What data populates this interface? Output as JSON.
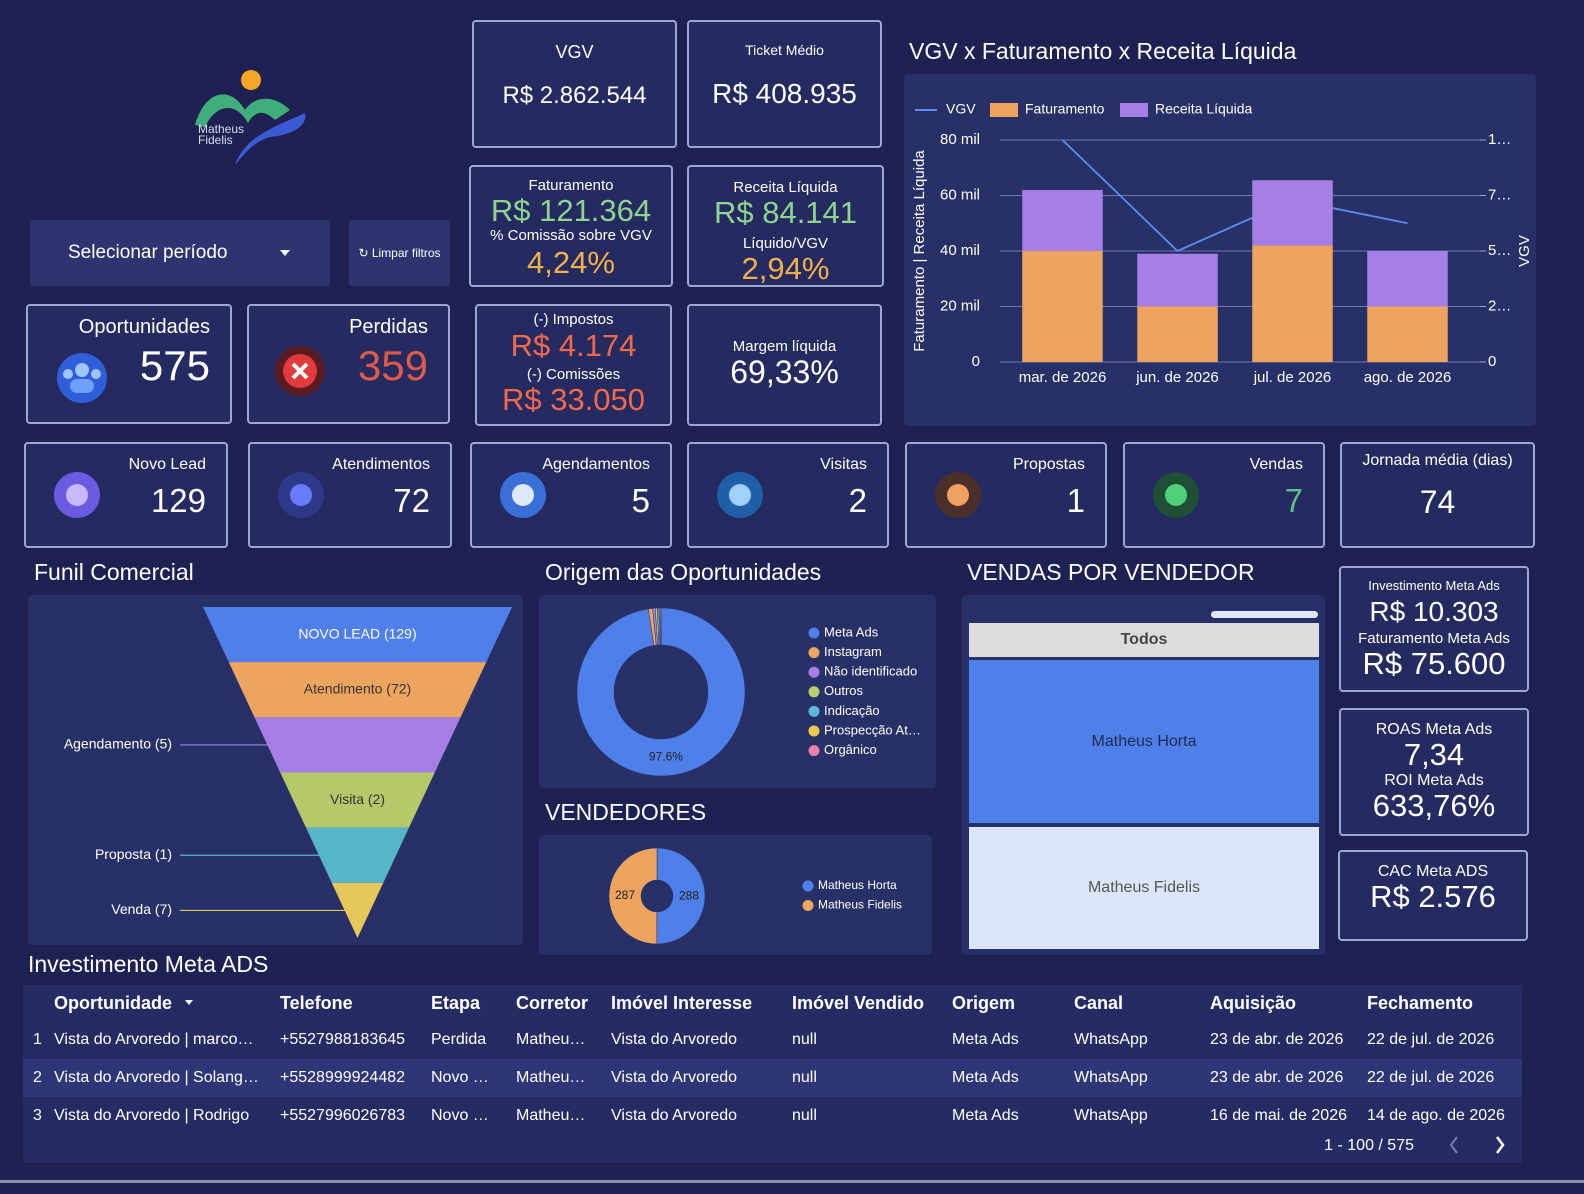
{
  "logo": {
    "line1": "Matheus",
    "line2": "Fidelis"
  },
  "filters": {
    "period": "Selecionar período",
    "clear": "↻ Limpar filtros"
  },
  "kpis": {
    "vgv": {
      "label": "VGV",
      "value": "R$ 2.862.544"
    },
    "ticket": {
      "label": "Ticket Médio",
      "value": "R$ 408.935"
    },
    "faturamento": {
      "label": "Faturamento",
      "value": "R$ 121.364",
      "sub_label": "% Comissão sobre VGV",
      "sub_value": "4,24%"
    },
    "receita": {
      "label": "Receita Líquida",
      "value": "R$ 84.141",
      "sub_label": "Líquido/VGV",
      "sub_value": "2,94%"
    },
    "oportunidades": {
      "label": "Oportunidades",
      "value": 575
    },
    "perdidas": {
      "label": "Perdidas",
      "value": 359
    },
    "impostos": {
      "label": "(-) Impostos",
      "value": "R$ 4.174",
      "sub_label": "(-) Comissões",
      "sub_value": "R$ 33.050"
    },
    "margem": {
      "label": "Margem líquida",
      "value": "69,33%"
    }
  },
  "stages": [
    {
      "label": "Novo Lead",
      "value": 129
    },
    {
      "label": "Atendimentos",
      "value": 72
    },
    {
      "label": "Agendamentos",
      "value": 5
    },
    {
      "label": "Visitas",
      "value": 2
    },
    {
      "label": "Propostas",
      "value": 1
    },
    {
      "label": "Vendas",
      "value": 7
    },
    {
      "label": "Jornada média (dias)",
      "value": 74
    }
  ],
  "meta_ads": {
    "investimento": {
      "label": "Investimento Meta Ads",
      "value": "R$ 10.303"
    },
    "faturamento": {
      "label": "Faturamento Meta Ads",
      "value": "R$ 75.600"
    },
    "roas": {
      "label": "ROAS Meta Ads",
      "value": "7,34"
    },
    "roi": {
      "label": "ROI Meta Ads",
      "value": "633,76%"
    },
    "cac": {
      "label": "CAC Meta ADS",
      "value": "R$ 2.576"
    }
  },
  "combo_chart": {
    "type": "bar",
    "stacked": true,
    "title": "VGV x Faturamento x Receita Líquida",
    "categories": [
      "mar. de 2026",
      "jun. de 2026",
      "jul. de 2026",
      "ago. de 2026"
    ],
    "series": [
      {
        "name": "VGV",
        "type": "line",
        "axis": "y2",
        "color": "#5b8def",
        "values": [
          1000000,
          500000,
          730000,
          625000
        ]
      },
      {
        "name": "Faturamento",
        "color": "#eda45e",
        "values": [
          40000,
          20000,
          42000,
          20000
        ]
      },
      {
        "name": "Receita Líquida",
        "color": "#a57ee6",
        "values": [
          22000,
          19000,
          23500,
          20000
        ]
      }
    ],
    "ylim": [
      0,
      80000
    ],
    "yticks": [
      0,
      {
        "value": 20000,
        "label": "20 mil"
      },
      {
        "value": 40000,
        "label": "40 mil"
      },
      {
        "value": 60000,
        "label": "60 mil"
      },
      {
        "value": 80000,
        "label": "80 mil"
      }
    ],
    "y2lim": [
      0,
      1000000
    ],
    "y2ticks": [
      0,
      {
        "value": 250000,
        "label": "2…"
      },
      {
        "value": 500000,
        "label": "5…"
      },
      {
        "value": 750000,
        "label": "7…"
      },
      {
        "value": 1000000,
        "label": "1…"
      }
    ],
    "ylabel": "Faturamento | Receita Líquida",
    "y2label": "VGV",
    "grid": true,
    "legend": "top-left"
  },
  "funnel": {
    "type": "funnel",
    "title": "Funil Comercial",
    "values": [
      129,
      72,
      5,
      2,
      1,
      7
    ],
    "value_labels": [
      "NOVO LEAD (129)",
      "Atendimento (72)",
      "Agendamento (5)",
      "Visita (2)",
      "Proposta (1)",
      "Venda (7)"
    ],
    "colors": [
      "#4f7fe8",
      "#eda45e",
      "#a57ee6",
      "#b5c96a",
      "#56b5c9",
      "#e6c85a"
    ]
  },
  "origem": {
    "type": "pie",
    "donut": true,
    "title": "Origem das Oportunidades",
    "categories": [
      "Meta Ads",
      "Instagram",
      "Não identificado",
      "Outros",
      "Indicação",
      "Prospecção At…",
      "Orgânico"
    ],
    "values": [
      97.6,
      0.8,
      0.5,
      0.4,
      0.3,
      0.2,
      0.2
    ],
    "value_labels": [
      "97.6%",
      null,
      null,
      null,
      null,
      null,
      null
    ],
    "colors": [
      "#4f7fe8",
      "#eda45e",
      "#a57ee6",
      "#b5d06a",
      "#5ab8d8",
      "#f0c850",
      "#e880b0"
    ],
    "legend": "right"
  },
  "vendedores": {
    "type": "pie",
    "donut": true,
    "title": "VENDEDORES",
    "categories": [
      "Matheus Horta",
      "Matheus Fidelis"
    ],
    "values": [
      288,
      287
    ],
    "colors": [
      "#4f7fe8",
      "#eda45e"
    ],
    "legend": "right"
  },
  "vendas_por_vendedor": {
    "title": "VENDAS POR VENDEDOR",
    "filter": "Todos",
    "items": [
      "Matheus Horta",
      "Matheus Fidelis"
    ]
  },
  "table": {
    "title": "Investimento Meta ADS",
    "columns": [
      "Oportunidade",
      "Telefone",
      "Etapa",
      "Corretor",
      "Imóvel Interesse",
      "Imóvel Vendido",
      "Origem",
      "Canal",
      "Aquisição",
      "Fechamento"
    ],
    "rows": [
      {
        "index": 1,
        "cells": [
          "Vista do Arvoredo | marco…",
          "+5527988183645",
          "Perdida",
          "Matheu…",
          "Vista do Arvoredo",
          "null",
          "Meta Ads",
          "WhatsApp",
          "23 de abr. de 2026",
          "22 de jul. de 2026"
        ]
      },
      {
        "index": 2,
        "cells": [
          "Vista do Arvoredo | Solang…",
          "+5528999924482",
          "Novo …",
          "Matheu…",
          "Vista do Arvoredo",
          "null",
          "Meta Ads",
          "WhatsApp",
          "23 de abr. de 2026",
          "22 de jul. de 2026"
        ]
      },
      {
        "index": 3,
        "cells": [
          "Vista do Arvoredo | Rodrigo",
          "+5527996026783",
          "Novo …",
          "Matheu…",
          "Vista do Arvoredo",
          "null",
          "Meta Ads",
          "WhatsApp",
          "16 de mai. de 2026",
          "14 de ago. de 2026"
        ]
      }
    ],
    "pagination": "1 - 100 / 575"
  }
}
